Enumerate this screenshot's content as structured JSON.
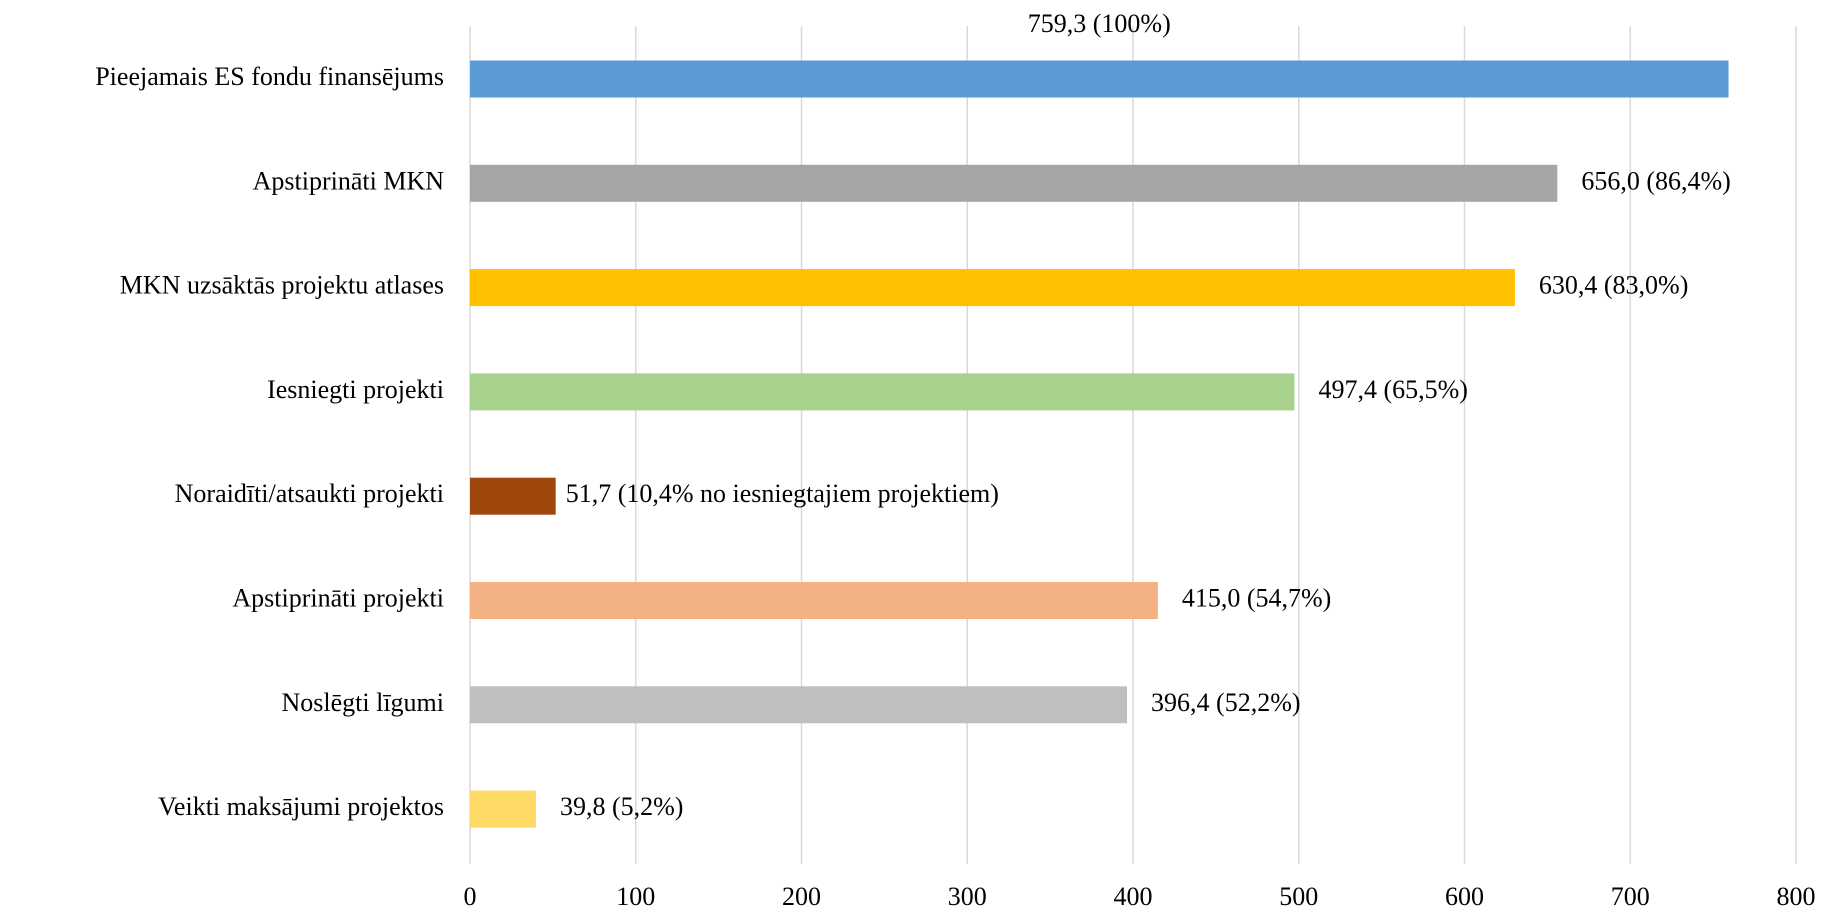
{
  "chart_data": {
    "type": "hbar",
    "categories": [
      "Pieejamais ES fondu finansējums",
      "Apstiprināti MKN",
      "MKN uzsāktās projektu atlases",
      "Iesniegti projekti",
      "Noraidīti/atsaukti projekti",
      "Apstiprināti projekti",
      "Noslēgti līgumi",
      "Veikti maksājumi projektos"
    ],
    "values": [
      759.3,
      656.0,
      630.4,
      497.4,
      51.7,
      415.0,
      396.4,
      39.8
    ],
    "value_labels": [
      "759,3 (100%)",
      "656,0 (86,4%)",
      "630,4 (83,0%)",
      "497,4 (65,5%)",
      "51,7 (10,4% no iesniegtajiem projektiem)",
      "415,0 (54,7%)",
      "396,4 (52,2%)",
      "39,8 (5,2%)"
    ],
    "colors": [
      "#5b9bd5",
      "#a5a5a5",
      "#ffc000",
      "#a9d18e",
      "#9e480e",
      "#f4b183",
      "#bfbfbf",
      "#ffd966"
    ],
    "xlim": [
      0,
      800
    ],
    "xticks": [
      0,
      100,
      200,
      300,
      400,
      500,
      600,
      700,
      800
    ],
    "grid": true
  }
}
